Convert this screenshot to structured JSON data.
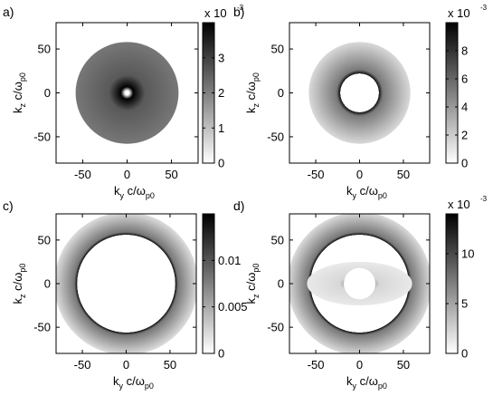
{
  "chart_data": [
    {
      "panel": "a)",
      "type": "heatmap",
      "xlabel": {
        "main": "k",
        "sub": "y",
        "rest": " c/ω",
        "rest_sub": "p0"
      },
      "ylabel": {
        "main": "k",
        "sub": "z",
        "rest": " c/ω",
        "rest_sub": "p0"
      },
      "xlim": [
        -80,
        80
      ],
      "ylim": [
        -80,
        80
      ],
      "xticks": [
        -50,
        0,
        50
      ],
      "yticks": [
        -50,
        0,
        50
      ],
      "colorbar": {
        "multiplier": "x 10",
        "exponent": "-3",
        "range": [
          0,
          4
        ],
        "ticks": [
          0,
          1,
          2,
          3
        ],
        "tick_labels": [
          "0",
          "1",
          "2",
          "3"
        ]
      },
      "rings": [
        {
          "kind": "disk",
          "radius": 58,
          "value": 2.6,
          "scale": "x",
          "dark_core": true
        }
      ]
    },
    {
      "panel": "b)",
      "type": "heatmap",
      "xlabel": {
        "main": "k",
        "sub": "y",
        "rest": " c/ω",
        "rest_sub": "p0"
      },
      "ylabel": {
        "main": "k",
        "sub": "z",
        "rest": " c/ω",
        "rest_sub": "p0"
      },
      "xlim": [
        -80,
        80
      ],
      "ylim": [
        -80,
        80
      ],
      "xticks": [
        -50,
        0,
        50
      ],
      "yticks": [
        -50,
        0,
        50
      ],
      "colorbar": {
        "multiplier": "x 10",
        "exponent": "-3",
        "range": [
          0,
          10
        ],
        "ticks": [
          0,
          2,
          4,
          6,
          8
        ],
        "tick_labels": [
          "0",
          "2",
          "4",
          "6",
          "8"
        ]
      },
      "rings": [
        {
          "kind": "annulus",
          "inner_x": 22,
          "inner_y": 22,
          "outer": 58,
          "edge_value": 9.5,
          "outer_value": 1.5,
          "scale": "x"
        }
      ]
    },
    {
      "panel": "c)",
      "type": "heatmap",
      "xlabel": {
        "main": "k",
        "sub": "y",
        "rest": " c/ω",
        "rest_sub": "p0"
      },
      "ylabel": {
        "main": "k",
        "sub": "z",
        "rest": " c/ω",
        "rest_sub": "p0"
      },
      "xlim": [
        -80,
        80
      ],
      "ylim": [
        -80,
        80
      ],
      "xticks": [
        -50,
        0,
        50
      ],
      "yticks": [
        -50,
        0,
        50
      ],
      "colorbar": {
        "multiplier": "",
        "exponent": "",
        "range": [
          0,
          0.015
        ],
        "ticks": [
          0,
          0.005,
          0.01
        ],
        "tick_labels": [
          "0",
          "0.005",
          "0.01"
        ]
      },
      "rings": [
        {
          "kind": "annulus",
          "inner_x": 56,
          "inner_y": 56,
          "outer": 82,
          "edge_value": 0.0145,
          "outer_value": 0.002,
          "scale": "x"
        }
      ]
    },
    {
      "panel": "d)",
      "type": "heatmap",
      "xlabel": {
        "main": "k",
        "sub": "y",
        "rest": " c/ω",
        "rest_sub": "p0"
      },
      "ylabel": {
        "main": "k",
        "sub": "z",
        "rest": " c/ω",
        "rest_sub": "p0"
      },
      "xlim": [
        -80,
        80
      ],
      "ylim": [
        -80,
        80
      ],
      "xticks": [
        -50,
        0,
        50
      ],
      "yticks": [
        -50,
        0,
        50
      ],
      "colorbar": {
        "multiplier": "x 10",
        "exponent": "-3",
        "range": [
          0,
          14
        ],
        "ticks": [
          0,
          5,
          10
        ],
        "tick_labels": [
          "0",
          "5",
          "10"
        ]
      },
      "rings": [
        {
          "kind": "annulus",
          "inner_x": 56,
          "inner_y": 56,
          "outer": 82,
          "edge_value": 13.5,
          "outer_value": 2.0,
          "scale": "x"
        },
        {
          "kind": "annulus",
          "inner_x": 18,
          "inner_y": 18,
          "outer_x": 60,
          "outer_y": 25,
          "edge_value": 4.0,
          "outer_value": 1.2,
          "scale": "x"
        }
      ]
    }
  ]
}
